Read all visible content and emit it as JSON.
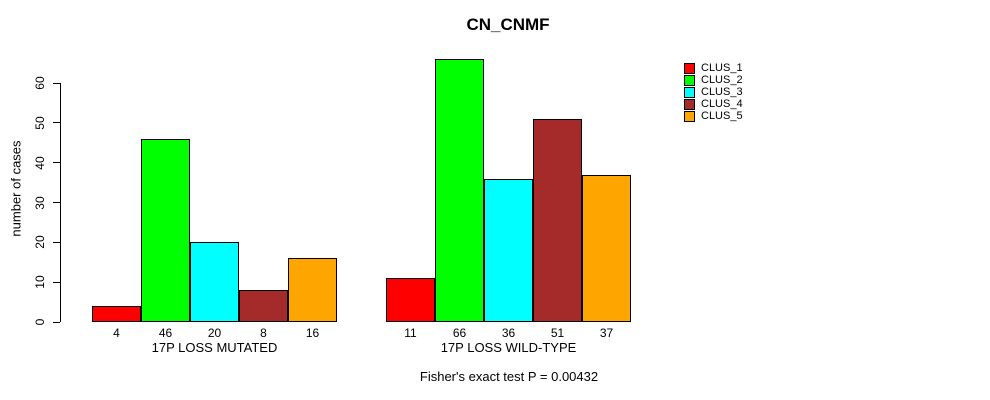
{
  "chart_data": {
    "type": "bar",
    "title": "CN_CNMF",
    "xlabel": "",
    "ylabel": "number of cases",
    "yticks": [
      0,
      10,
      20,
      30,
      40,
      50,
      60
    ],
    "ylim": [
      0,
      66
    ],
    "grid": false,
    "legend_position": "top-right",
    "categories": [
      "17P LOSS MUTATED",
      "17P LOSS WILD-TYPE"
    ],
    "series": [
      {
        "name": "CLUS_1",
        "color": "#FF0000",
        "values": [
          4,
          11
        ]
      },
      {
        "name": "CLUS_2",
        "color": "#00FF00",
        "values": [
          46,
          66
        ]
      },
      {
        "name": "CLUS_3",
        "color": "#00FFFF",
        "values": [
          20,
          36
        ]
      },
      {
        "name": "CLUS_4",
        "color": "#A52A2A",
        "values": [
          8,
          51
        ]
      },
      {
        "name": "CLUS_5",
        "color": "#FFA500",
        "values": [
          16,
          37
        ]
      }
    ],
    "bar_value_labels": [
      [
        4,
        46,
        20,
        8,
        16
      ],
      [
        11,
        66,
        36,
        51,
        37
      ]
    ],
    "footnote": "Fisher's exact test P = 0.00432"
  }
}
